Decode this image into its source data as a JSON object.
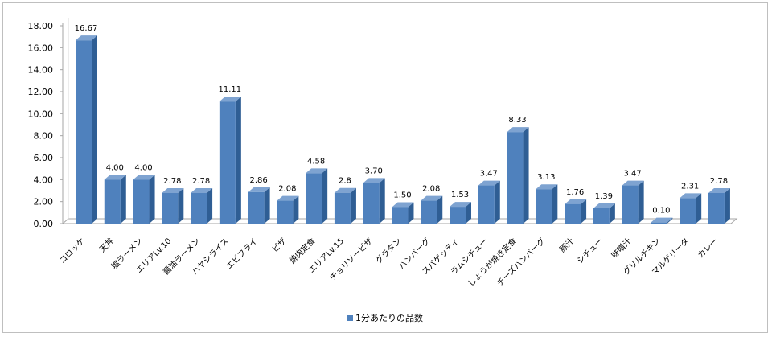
{
  "chart_data": {
    "type": "bar",
    "title": "",
    "xlabel": "",
    "ylabel": "",
    "ylim": [
      0,
      18
    ],
    "ytick_step": 2,
    "ytick_labels": [
      "0.00",
      "2.00",
      "4.00",
      "6.00",
      "8.00",
      "10.00",
      "12.00",
      "14.00",
      "16.00",
      "18.00"
    ],
    "grid": false,
    "legend_position": "bottom",
    "bar_color": "#4f81bd",
    "categories": [
      "コロッケ",
      "天丼",
      "塩ラーメン",
      "エリアLv.10",
      "醤油ラーメン",
      "ハヤシライス",
      "エビフライ",
      "ピザ",
      "焼肉定食",
      "エリアLv.15",
      "チョリソーピザ",
      "グラタン",
      "ハンバーグ",
      "スパゲッティ",
      "ラムシチュー",
      "しょうが焼き定食",
      "チーズハンバーグ",
      "豚汁",
      "シチュー",
      "味噌汁",
      "グリルチキン",
      "マルゲリータ",
      "カレー"
    ],
    "series": [
      {
        "name": "1分あたりの品数",
        "values": [
          16.67,
          4.0,
          4.0,
          2.78,
          2.78,
          11.11,
          2.86,
          2.08,
          4.58,
          2.8,
          3.7,
          1.5,
          2.08,
          1.53,
          3.47,
          8.33,
          3.13,
          1.76,
          1.39,
          3.47,
          0.1,
          2.31,
          2.78
        ],
        "labels": [
          "16.67",
          "4.00",
          "4.00",
          "2.78",
          "2.78",
          "11.11",
          "2.86",
          "2.08",
          "4.58",
          "2.8",
          "3.70",
          "1.50",
          "2.08",
          "1.53",
          "3.47",
          "8.33",
          "3.13",
          "1.76",
          "1.39",
          "3.47",
          "0.10",
          "2.31",
          "2.78"
        ]
      }
    ]
  }
}
